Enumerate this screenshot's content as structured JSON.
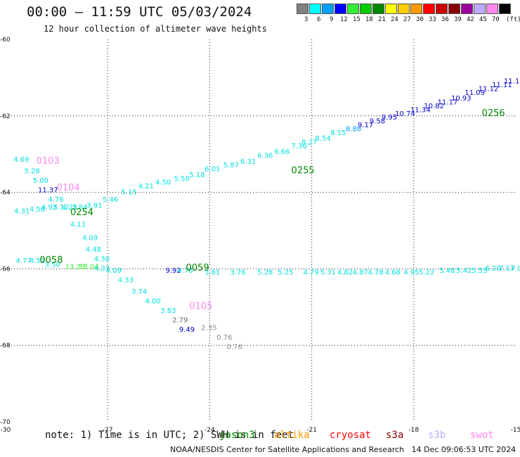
{
  "title": "00:00 – 11:59 UTC 05/03/2024",
  "subtitle": "12 hour collection of altimeter wave heights",
  "legend": {
    "unit": "(ft)",
    "bins": [
      {
        "label": "3",
        "color": "#808080"
      },
      {
        "label": "6",
        "color": "#00ffff"
      },
      {
        "label": "9",
        "color": "#00a0ff"
      },
      {
        "label": "12",
        "color": "#0000ff"
      },
      {
        "label": "15",
        "color": "#33ee33"
      },
      {
        "label": "18",
        "color": "#00cc00"
      },
      {
        "label": "21",
        "color": "#008800"
      },
      {
        "label": "24",
        "color": "#ffff00"
      },
      {
        "label": "27",
        "color": "#ffcc00"
      },
      {
        "label": "30",
        "color": "#ff9900"
      },
      {
        "label": "33",
        "color": "#ff0000"
      },
      {
        "label": "36",
        "color": "#cc0000"
      },
      {
        "label": "39",
        "color": "#880000"
      },
      {
        "label": "42",
        "color": "#990099"
      },
      {
        "label": "45",
        "color": "#bbaaff"
      },
      {
        "label": "70",
        "color": "#ff88ee"
      },
      {
        "label": "",
        "color": "#000000"
      }
    ]
  },
  "note": "note: 1) Time is in UTC; 2) SWH is in feet",
  "missions": [
    {
      "label": "jason3",
      "color": "#008800"
    },
    {
      "label": "altika",
      "color": "#ff9900"
    },
    {
      "label": "cryosat",
      "color": "#ff0000"
    },
    {
      "label": "s3a",
      "color": "#880000"
    },
    {
      "label": "s3b",
      "color": "#bbaaff"
    },
    {
      "label": "swot",
      "color": "#ff88ee"
    }
  ],
  "footer": "NOAA/NESDIS Center for Satellite Applications and Research   14 Dec 09:06:53 UTC 2024",
  "chart_data": {
    "type": "scatter",
    "xlim": [
      -30,
      -15
    ],
    "ylim": [
      -70,
      -60
    ],
    "x_ticks": [
      -30,
      -27,
      -24,
      -21,
      -18,
      -15
    ],
    "y_ticks": [
      -60,
      -62,
      -64,
      -66,
      -68,
      -70
    ],
    "grid": true,
    "pass_labels": [
      {
        "text": "0103",
        "x": -29.1,
        "y": -63.25,
        "color": "#ff88ee"
      },
      {
        "text": "0104",
        "x": -28.5,
        "y": -63.95,
        "color": "#ff88ee"
      },
      {
        "text": "0254",
        "x": -28.1,
        "y": -64.6,
        "color": "#008800"
      },
      {
        "text": "0058",
        "x": -29.0,
        "y": -65.85,
        "color": "#008800"
      },
      {
        "text": "0059",
        "x": -24.7,
        "y": -66.05,
        "color": "#008800"
      },
      {
        "text": "0105",
        "x": -24.6,
        "y": -67.05,
        "color": "#ff88ee"
      },
      {
        "text": "0255",
        "x": -21.6,
        "y": -63.5,
        "color": "#008800"
      },
      {
        "text": "0256",
        "x": -16.0,
        "y": -62.0,
        "color": "#008800"
      }
    ],
    "points": [
      {
        "x": -29.77,
        "y": -63.2,
        "v": "4.69",
        "color": "#00e0e0"
      },
      {
        "x": -29.45,
        "y": -63.5,
        "v": "5.28",
        "color": "#00e0e0"
      },
      {
        "x": -29.2,
        "y": -63.75,
        "v": "5.00",
        "color": "#00e0e0"
      },
      {
        "x": -29.05,
        "y": -64.0,
        "v": "11.37",
        "color": "#0000cc"
      },
      {
        "x": -28.75,
        "y": -64.25,
        "v": "4.76",
        "color": "#00e0e0"
      },
      {
        "x": -28.6,
        "y": -64.45,
        "v": "5.12",
        "color": "#00e0e0"
      },
      {
        "x": -28.35,
        "y": -64.45,
        "v": "4.25",
        "color": "#00e0e0"
      },
      {
        "x": -28.05,
        "y": -64.45,
        "v": "3.84",
        "color": "#00e0e0"
      },
      {
        "x": -27.62,
        "y": -64.4,
        "v": "3.91",
        "color": "#00e0e0"
      },
      {
        "x": -28.1,
        "y": -64.9,
        "v": "4.11",
        "color": "#00e0e0"
      },
      {
        "x": -27.75,
        "y": -65.25,
        "v": "4.09",
        "color": "#00e0e0"
      },
      {
        "x": -27.65,
        "y": -65.55,
        "v": "4.48",
        "color": "#00e0e0"
      },
      {
        "x": -27.4,
        "y": -65.8,
        "v": "4.30",
        "color": "#00e0e0"
      },
      {
        "x": -27.05,
        "y": -66.1,
        "v": "4.09",
        "color": "#00e0e0"
      },
      {
        "x": -26.7,
        "y": -66.35,
        "v": "4.33",
        "color": "#00e0e0"
      },
      {
        "x": -26.3,
        "y": -66.65,
        "v": "3.74",
        "color": "#00e0e0"
      },
      {
        "x": -25.9,
        "y": -66.9,
        "v": "4.00",
        "color": "#00e0e0"
      },
      {
        "x": -25.45,
        "y": -67.15,
        "v": "3.83",
        "color": "#00e0e0"
      },
      {
        "x": -25.1,
        "y": -67.4,
        "v": "2.79",
        "color": "#666666"
      },
      {
        "x": -24.9,
        "y": -67.65,
        "v": "9.49",
        "color": "#0000cc"
      },
      {
        "x": -24.25,
        "y": -67.6,
        "v": "2.35",
        "color": "#888888"
      },
      {
        "x": -23.8,
        "y": -67.85,
        "v": "0.76",
        "color": "#888888"
      },
      {
        "x": -23.5,
        "y": -68.1,
        "v": "0.76",
        "color": "#888888"
      },
      {
        "x": -29.75,
        "y": -64.55,
        "v": "4.31",
        "color": "#00e0e0"
      },
      {
        "x": -29.3,
        "y": -64.5,
        "v": "4.56",
        "color": "#00e0e0"
      },
      {
        "x": -28.95,
        "y": -64.45,
        "v": "4.92",
        "color": "#00e0e0"
      },
      {
        "x": -27.15,
        "y": -64.25,
        "v": "5.46",
        "color": "#00e0e0"
      },
      {
        "x": -26.6,
        "y": -64.05,
        "v": "5.15",
        "color": "#00e0e0"
      },
      {
        "x": -26.1,
        "y": -63.9,
        "v": "4.21",
        "color": "#00e0e0"
      },
      {
        "x": -25.6,
        "y": -63.8,
        "v": "4.50",
        "color": "#00e0e0"
      },
      {
        "x": -25.05,
        "y": -63.7,
        "v": "5.50",
        "color": "#00e0e0"
      },
      {
        "x": -24.6,
        "y": -63.6,
        "v": "5.18",
        "color": "#00e0e0"
      },
      {
        "x": -24.15,
        "y": -63.45,
        "v": "6.01",
        "color": "#00e0e0"
      },
      {
        "x": -23.6,
        "y": -63.35,
        "v": "5.87",
        "color": "#00e0e0"
      },
      {
        "x": -23.1,
        "y": -63.25,
        "v": "6.31",
        "color": "#00e0e0"
      },
      {
        "x": -22.6,
        "y": -63.1,
        "v": "6.36",
        "color": "#00e0e0"
      },
      {
        "x": -22.1,
        "y": -63.0,
        "v": "6.66",
        "color": "#00e0e0"
      },
      {
        "x": -21.6,
        "y": -62.85,
        "v": "7.36",
        "color": "#00e0e0"
      },
      {
        "x": -21.3,
        "y": -62.75,
        "v": "8.27",
        "color": "#00e0e0"
      },
      {
        "x": -20.9,
        "y": -62.65,
        "v": "8.54",
        "color": "#00e0e0"
      },
      {
        "x": -20.45,
        "y": -62.5,
        "v": "8.15",
        "color": "#00e0e0"
      },
      {
        "x": -20.0,
        "y": -62.4,
        "v": "8.88",
        "color": "#00a0ff"
      },
      {
        "x": -19.65,
        "y": -62.3,
        "v": "9.17",
        "color": "#0000cc"
      },
      {
        "x": -19.3,
        "y": -62.2,
        "v": "9.58",
        "color": "#0000cc"
      },
      {
        "x": -18.95,
        "y": -62.1,
        "v": "9.95",
        "color": "#0000cc"
      },
      {
        "x": -18.55,
        "y": -62.0,
        "v": "10.74",
        "color": "#0000cc"
      },
      {
        "x": -18.1,
        "y": -61.9,
        "v": "11.34",
        "color": "#0000cc"
      },
      {
        "x": -17.7,
        "y": -61.8,
        "v": "10.82",
        "color": "#0000cc"
      },
      {
        "x": -17.3,
        "y": -61.7,
        "v": "11.17",
        "color": "#0000cc"
      },
      {
        "x": -16.9,
        "y": -61.6,
        "v": "10.93",
        "color": "#0000cc"
      },
      {
        "x": -16.5,
        "y": -61.45,
        "v": "11.09",
        "color": "#0000cc"
      },
      {
        "x": -16.1,
        "y": -61.35,
        "v": "11.12",
        "color": "#0000cc"
      },
      {
        "x": -15.7,
        "y": -61.25,
        "v": "11.11",
        "color": "#0000cc"
      },
      {
        "x": -15.35,
        "y": -61.15,
        "v": "11.15",
        "color": "#0000cc"
      },
      {
        "x": -29.7,
        "y": -65.85,
        "v": "4.77",
        "color": "#00e0e0"
      },
      {
        "x": -29.3,
        "y": -65.85,
        "v": "4.52",
        "color": "#00e0e0"
      },
      {
        "x": -28.85,
        "y": -65.95,
        "v": "3.50",
        "color": "#00e0e0"
      },
      {
        "x": -28.25,
        "y": -66.0,
        "v": "13.23",
        "color": "#33ee33"
      },
      {
        "x": -27.85,
        "y": -66.0,
        "v": "13.04",
        "color": "#33ee33"
      },
      {
        "x": -27.4,
        "y": -66.05,
        "v": "4.37",
        "color": "#00e0e0"
      },
      {
        "x": -25.3,
        "y": -66.1,
        "v": "9.92",
        "color": "#0000cc"
      },
      {
        "x": -24.95,
        "y": -66.1,
        "v": "4.76",
        "color": "#00e0e0"
      },
      {
        "x": -24.15,
        "y": -66.15,
        "v": "3.81",
        "color": "#00e0e0"
      },
      {
        "x": -23.4,
        "y": -66.15,
        "v": "3.76",
        "color": "#00e0e0"
      },
      {
        "x": -22.6,
        "y": -66.15,
        "v": "5.28",
        "color": "#00e0e0"
      },
      {
        "x": -22.0,
        "y": -66.15,
        "v": "5.25",
        "color": "#00e0e0"
      },
      {
        "x": -21.25,
        "y": -66.15,
        "v": "4.79",
        "color": "#00e0e0"
      },
      {
        "x": -20.75,
        "y": -66.15,
        "v": "5.31",
        "color": "#00e0e0"
      },
      {
        "x": -20.25,
        "y": -66.15,
        "v": "4.82",
        "color": "#00e0e0"
      },
      {
        "x": -19.8,
        "y": -66.15,
        "v": "4.87",
        "color": "#00e0e0"
      },
      {
        "x": -19.35,
        "y": -66.15,
        "v": "4.78",
        "color": "#00e0e0"
      },
      {
        "x": -18.85,
        "y": -66.15,
        "v": "4.68",
        "color": "#00e0e0"
      },
      {
        "x": -18.3,
        "y": -66.15,
        "v": "4.95",
        "color": "#00e0e0"
      },
      {
        "x": -17.85,
        "y": -66.15,
        "v": "5.22",
        "color": "#00e0e0"
      },
      {
        "x": -17.25,
        "y": -66.1,
        "v": "5.48",
        "color": "#00e0e0"
      },
      {
        "x": -16.75,
        "y": -66.1,
        "v": "5.42",
        "color": "#00e0e0"
      },
      {
        "x": -16.3,
        "y": -66.1,
        "v": "5.55",
        "color": "#00e0e0"
      },
      {
        "x": -15.9,
        "y": -66.05,
        "v": "6.20",
        "color": "#00e0e0"
      },
      {
        "x": -15.5,
        "y": -66.05,
        "v": "7.17",
        "color": "#00e0e0"
      },
      {
        "x": -15.15,
        "y": -66.05,
        "v": "7.00",
        "color": "#00e0e0"
      }
    ]
  }
}
